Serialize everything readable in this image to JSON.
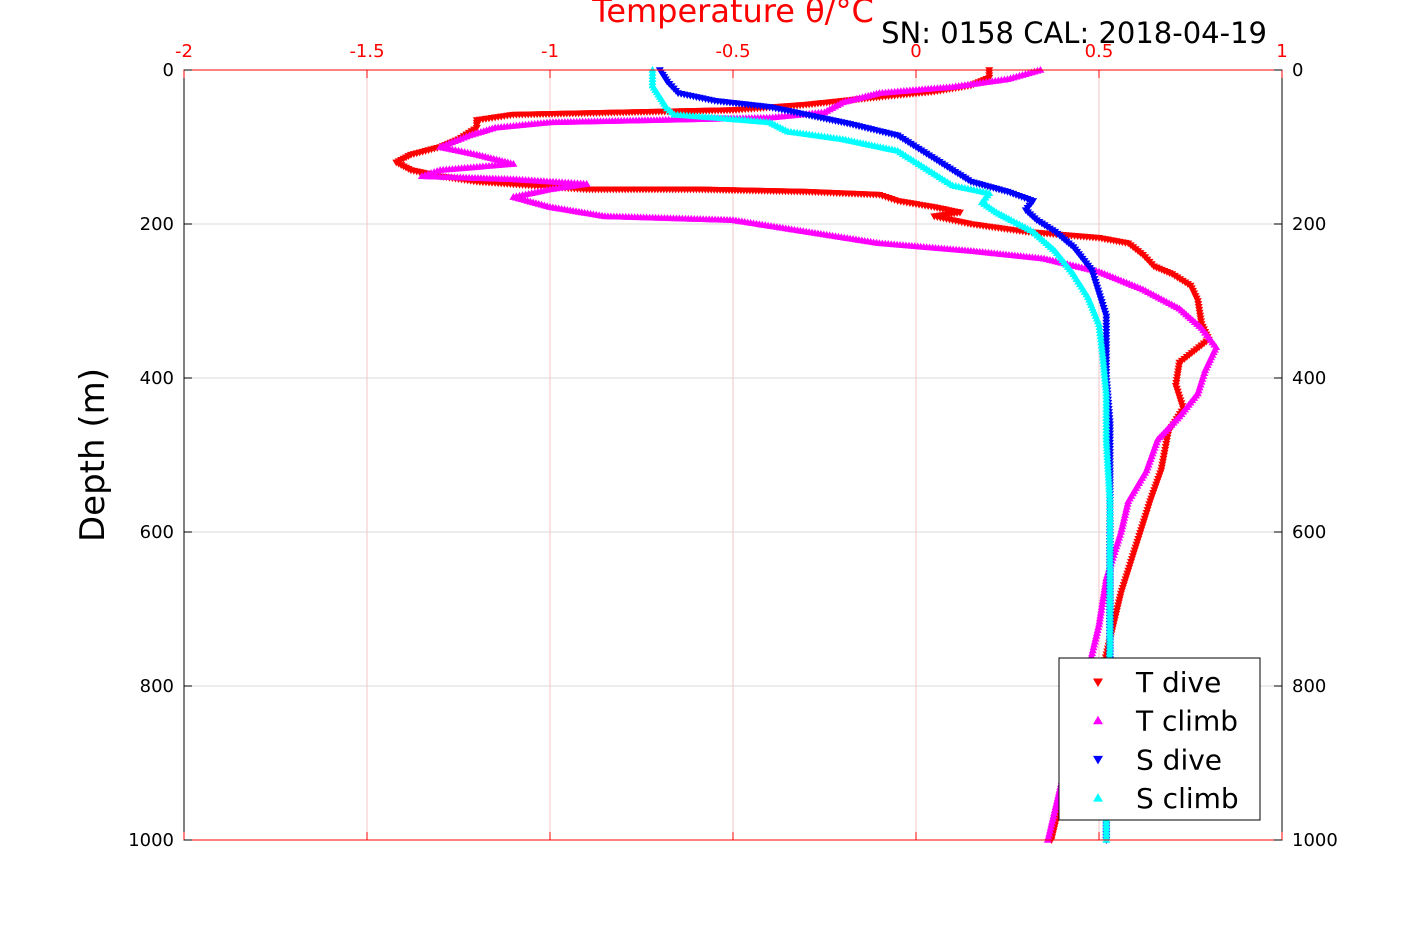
{
  "chart_data": {
    "type": "scatter",
    "xlabel": "Temperature θ/°C",
    "ylabel": "Depth (m)",
    "annotation": "SN: 0158  CAL: 2018-04-19",
    "xlim": [
      -2,
      1
    ],
    "ylim": [
      0,
      1000
    ],
    "y_reversed": true,
    "x_axis_position": "top",
    "x_ticks": [
      "-2",
      "-1.5",
      "-1",
      "-0.5",
      "0",
      "0.5",
      "1"
    ],
    "y_ticks": [
      "0",
      "200",
      "400",
      "600",
      "800",
      "1000"
    ],
    "grid": true,
    "legend_position": "bottom-right",
    "colors": {
      "axis_x": "#ff0000",
      "grid_x": "#f4c4c4",
      "grid_y": "#d9d9d9"
    },
    "series": [
      {
        "name": "T dive",
        "marker": "triangle-down",
        "color": "#ff0000",
        "points": [
          [
            0.2,
            0
          ],
          [
            0.2,
            10
          ],
          [
            0.15,
            20
          ],
          [
            0.05,
            28
          ],
          [
            -0.1,
            35
          ],
          [
            -0.3,
            45
          ],
          [
            -0.5,
            52
          ],
          [
            -0.8,
            55
          ],
          [
            -1.1,
            58
          ],
          [
            -1.2,
            65
          ],
          [
            -1.2,
            75
          ],
          [
            -1.25,
            90
          ],
          [
            -1.3,
            100
          ],
          [
            -1.38,
            110
          ],
          [
            -1.42,
            120
          ],
          [
            -1.38,
            130
          ],
          [
            -1.3,
            138
          ],
          [
            -1.2,
            145
          ],
          [
            -1.05,
            150
          ],
          [
            -0.9,
            155
          ],
          [
            -0.6,
            155
          ],
          [
            -0.3,
            158
          ],
          [
            -0.1,
            162
          ],
          [
            -0.05,
            170
          ],
          [
            0.05,
            178
          ],
          [
            0.12,
            185
          ],
          [
            0.05,
            190
          ],
          [
            0.15,
            200
          ],
          [
            0.3,
            210
          ],
          [
            0.5,
            218
          ],
          [
            0.58,
            225
          ],
          [
            0.62,
            240
          ],
          [
            0.65,
            255
          ],
          [
            0.7,
            265
          ],
          [
            0.75,
            280
          ],
          [
            0.77,
            300
          ],
          [
            0.78,
            330
          ],
          [
            0.8,
            350
          ],
          [
            0.72,
            380
          ],
          [
            0.71,
            410
          ],
          [
            0.73,
            440
          ],
          [
            0.69,
            470
          ],
          [
            0.67,
            520
          ],
          [
            0.64,
            560
          ],
          [
            0.6,
            620
          ],
          [
            0.56,
            680
          ],
          [
            0.53,
            740
          ],
          [
            0.5,
            800
          ],
          [
            0.46,
            880
          ],
          [
            0.4,
            940
          ],
          [
            0.37,
            1000
          ]
        ]
      },
      {
        "name": "T climb",
        "marker": "triangle-up",
        "color": "#ff00ff",
        "points": [
          [
            0.34,
            0
          ],
          [
            0.25,
            12
          ],
          [
            0.1,
            22
          ],
          [
            -0.1,
            30
          ],
          [
            -0.2,
            42
          ],
          [
            -0.25,
            55
          ],
          [
            -0.4,
            62
          ],
          [
            -0.7,
            65
          ],
          [
            -1.0,
            68
          ],
          [
            -1.15,
            75
          ],
          [
            -1.22,
            85
          ],
          [
            -1.3,
            100
          ],
          [
            -1.2,
            110
          ],
          [
            -1.1,
            122
          ],
          [
            -1.3,
            130
          ],
          [
            -1.35,
            138
          ],
          [
            -1.1,
            142
          ],
          [
            -0.9,
            148
          ],
          [
            -1.0,
            155
          ],
          [
            -1.1,
            165
          ],
          [
            -1.0,
            178
          ],
          [
            -0.85,
            190
          ],
          [
            -0.5,
            195
          ],
          [
            -0.3,
            210
          ],
          [
            -0.1,
            225
          ],
          [
            0.15,
            235
          ],
          [
            0.35,
            245
          ],
          [
            0.5,
            262
          ],
          [
            0.62,
            285
          ],
          [
            0.72,
            310
          ],
          [
            0.78,
            335
          ],
          [
            0.82,
            360
          ],
          [
            0.79,
            390
          ],
          [
            0.77,
            420
          ],
          [
            0.72,
            450
          ],
          [
            0.66,
            480
          ],
          [
            0.63,
            520
          ],
          [
            0.58,
            560
          ],
          [
            0.56,
            600
          ],
          [
            0.52,
            660
          ],
          [
            0.5,
            720
          ],
          [
            0.47,
            780
          ],
          [
            0.43,
            850
          ],
          [
            0.4,
            920
          ],
          [
            0.37,
            980
          ],
          [
            0.36,
            1000
          ]
        ]
      },
      {
        "name": "S dive",
        "marker": "triangle-down",
        "color": "#0000ff",
        "points": [
          [
            -0.7,
            0
          ],
          [
            -0.68,
            15
          ],
          [
            -0.65,
            30
          ],
          [
            -0.55,
            40
          ],
          [
            -0.4,
            48
          ],
          [
            -0.3,
            58
          ],
          [
            -0.18,
            70
          ],
          [
            -0.05,
            85
          ],
          [
            0.0,
            100
          ],
          [
            0.05,
            115
          ],
          [
            0.1,
            130
          ],
          [
            0.15,
            145
          ],
          [
            0.25,
            158
          ],
          [
            0.32,
            170
          ],
          [
            0.3,
            182
          ],
          [
            0.33,
            195
          ],
          [
            0.38,
            210
          ],
          [
            0.43,
            230
          ],
          [
            0.48,
            260
          ],
          [
            0.5,
            290
          ],
          [
            0.52,
            320
          ],
          [
            0.52,
            360
          ],
          [
            0.52,
            400
          ],
          [
            0.53,
            460
          ],
          [
            0.53,
            520
          ],
          [
            0.53,
            600
          ],
          [
            0.53,
            700
          ],
          [
            0.53,
            800
          ],
          [
            0.52,
            900
          ],
          [
            0.52,
            1000
          ]
        ]
      },
      {
        "name": "S climb",
        "marker": "triangle-up",
        "color": "#00ffff",
        "points": [
          [
            -0.72,
            0
          ],
          [
            -0.72,
            20
          ],
          [
            -0.7,
            35
          ],
          [
            -0.68,
            50
          ],
          [
            -0.66,
            58
          ],
          [
            -0.55,
            62
          ],
          [
            -0.4,
            68
          ],
          [
            -0.35,
            80
          ],
          [
            -0.2,
            90
          ],
          [
            -0.05,
            105
          ],
          [
            0.0,
            120
          ],
          [
            0.05,
            135
          ],
          [
            0.1,
            150
          ],
          [
            0.2,
            160
          ],
          [
            0.18,
            172
          ],
          [
            0.22,
            185
          ],
          [
            0.26,
            195
          ],
          [
            0.32,
            210
          ],
          [
            0.38,
            235
          ],
          [
            0.43,
            265
          ],
          [
            0.47,
            295
          ],
          [
            0.5,
            330
          ],
          [
            0.51,
            370
          ],
          [
            0.52,
            420
          ],
          [
            0.52,
            480
          ],
          [
            0.53,
            560
          ],
          [
            0.53,
            650
          ],
          [
            0.53,
            750
          ],
          [
            0.52,
            850
          ],
          [
            0.52,
            950
          ],
          [
            0.52,
            1000
          ]
        ]
      }
    ]
  }
}
